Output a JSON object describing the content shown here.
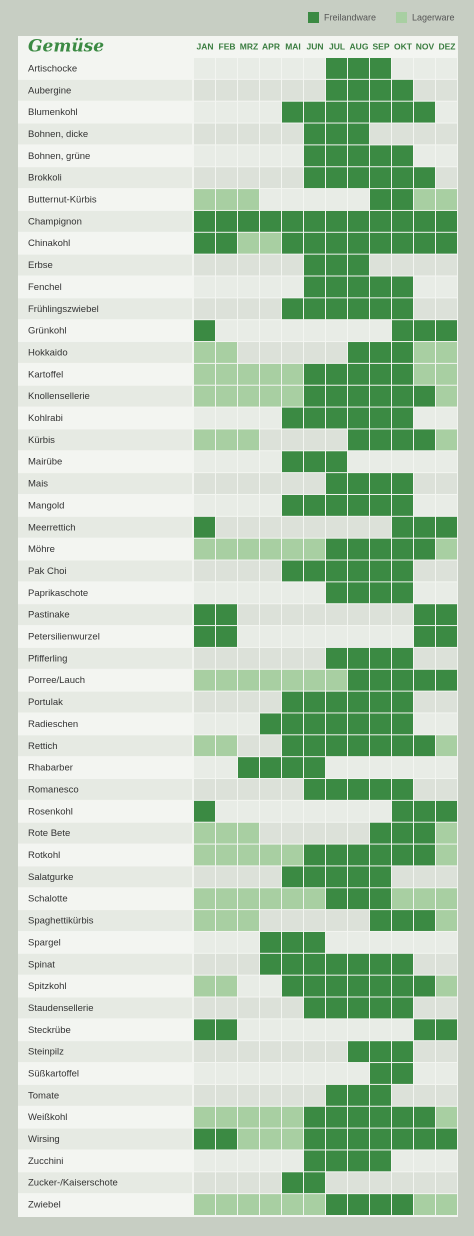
{
  "chart_data": {
    "type": "season-grid",
    "title": "Gemüse",
    "months": [
      "JAN",
      "FEB",
      "MRZ",
      "APR",
      "MAI",
      "JUN",
      "JUL",
      "AUG",
      "SEP",
      "OKT",
      "NOV",
      "DEZ"
    ],
    "legend": [
      {
        "label": "Freilandware",
        "color": "#3b8a43"
      },
      {
        "label": "Lagerware",
        "color": "#a8cfa2"
      }
    ],
    "rows": [
      {
        "name": "Artischocke",
        "months": [
          null,
          null,
          null,
          null,
          null,
          null,
          0,
          0,
          0,
          null,
          null,
          null
        ]
      },
      {
        "name": "Aubergine",
        "months": [
          null,
          null,
          null,
          null,
          null,
          null,
          0,
          0,
          0,
          0,
          null,
          null
        ]
      },
      {
        "name": "Blumenkohl",
        "months": [
          null,
          null,
          null,
          null,
          0,
          0,
          0,
          0,
          0,
          0,
          0,
          null
        ]
      },
      {
        "name": "Bohnen, dicke",
        "months": [
          null,
          null,
          null,
          null,
          null,
          0,
          0,
          0,
          null,
          null,
          null,
          null
        ]
      },
      {
        "name": "Bohnen, grüne",
        "months": [
          null,
          null,
          null,
          null,
          null,
          0,
          0,
          0,
          0,
          0,
          null,
          null
        ]
      },
      {
        "name": "Brokkoli",
        "months": [
          null,
          null,
          null,
          null,
          null,
          0,
          0,
          0,
          0,
          0,
          0,
          null
        ]
      },
      {
        "name": "Butternut-Kürbis",
        "months": [
          1,
          1,
          1,
          null,
          null,
          null,
          null,
          null,
          0,
          0,
          1,
          1
        ]
      },
      {
        "name": "Champignon",
        "months": [
          0,
          0,
          0,
          0,
          0,
          0,
          0,
          0,
          0,
          0,
          0,
          0
        ]
      },
      {
        "name": "Chinakohl",
        "months": [
          0,
          0,
          1,
          1,
          0,
          0,
          0,
          0,
          0,
          0,
          0,
          0
        ]
      },
      {
        "name": "Erbse",
        "months": [
          null,
          null,
          null,
          null,
          null,
          0,
          0,
          0,
          null,
          null,
          null,
          null
        ]
      },
      {
        "name": "Fenchel",
        "months": [
          null,
          null,
          null,
          null,
          null,
          0,
          0,
          0,
          0,
          0,
          null,
          null
        ]
      },
      {
        "name": "Frühlingszwiebel",
        "months": [
          null,
          null,
          null,
          null,
          0,
          0,
          0,
          0,
          0,
          0,
          null,
          null
        ]
      },
      {
        "name": "Grünkohl",
        "months": [
          0,
          null,
          null,
          null,
          null,
          null,
          null,
          null,
          null,
          0,
          0,
          0
        ]
      },
      {
        "name": "Hokkaido",
        "months": [
          1,
          1,
          null,
          null,
          null,
          null,
          null,
          0,
          0,
          0,
          1,
          1
        ]
      },
      {
        "name": "Kartoffel",
        "months": [
          1,
          1,
          1,
          1,
          1,
          0,
          0,
          0,
          0,
          0,
          1,
          1
        ]
      },
      {
        "name": "Knollensellerie",
        "months": [
          1,
          1,
          1,
          1,
          1,
          0,
          0,
          0,
          0,
          0,
          0,
          1
        ]
      },
      {
        "name": "Kohlrabi",
        "months": [
          null,
          null,
          null,
          null,
          0,
          0,
          0,
          0,
          0,
          0,
          null,
          null
        ]
      },
      {
        "name": "Kürbis",
        "months": [
          1,
          1,
          1,
          null,
          null,
          null,
          null,
          0,
          0,
          0,
          0,
          1
        ]
      },
      {
        "name": "Mairübe",
        "months": [
          null,
          null,
          null,
          null,
          0,
          0,
          0,
          null,
          null,
          null,
          null,
          null
        ]
      },
      {
        "name": "Mais",
        "months": [
          null,
          null,
          null,
          null,
          null,
          null,
          0,
          0,
          0,
          0,
          null,
          null
        ]
      },
      {
        "name": "Mangold",
        "months": [
          null,
          null,
          null,
          null,
          0,
          0,
          0,
          0,
          0,
          0,
          null,
          null
        ]
      },
      {
        "name": "Meerrettich",
        "months": [
          0,
          null,
          null,
          null,
          null,
          null,
          null,
          null,
          null,
          0,
          0,
          0
        ]
      },
      {
        "name": "Möhre",
        "months": [
          1,
          1,
          1,
          1,
          1,
          1,
          0,
          0,
          0,
          0,
          0,
          1
        ]
      },
      {
        "name": "Pak Choi",
        "months": [
          null,
          null,
          null,
          null,
          0,
          0,
          0,
          0,
          0,
          0,
          null,
          null
        ]
      },
      {
        "name": "Paprikaschote",
        "months": [
          null,
          null,
          null,
          null,
          null,
          null,
          0,
          0,
          0,
          0,
          null,
          null
        ]
      },
      {
        "name": "Pastinake",
        "months": [
          0,
          0,
          null,
          null,
          null,
          null,
          null,
          null,
          null,
          null,
          0,
          0
        ]
      },
      {
        "name": "Petersilienwurzel",
        "months": [
          0,
          0,
          null,
          null,
          null,
          null,
          null,
          null,
          null,
          null,
          0,
          0
        ]
      },
      {
        "name": "Pfifferling",
        "months": [
          null,
          null,
          null,
          null,
          null,
          null,
          0,
          0,
          0,
          0,
          null,
          null
        ]
      },
      {
        "name": "Porree/Lauch",
        "months": [
          1,
          1,
          1,
          1,
          1,
          1,
          1,
          0,
          0,
          0,
          0,
          0
        ]
      },
      {
        "name": "Portulak",
        "months": [
          null,
          null,
          null,
          null,
          0,
          0,
          0,
          0,
          0,
          0,
          null,
          null
        ]
      },
      {
        "name": "Radieschen",
        "months": [
          null,
          null,
          null,
          0,
          0,
          0,
          0,
          0,
          0,
          0,
          null,
          null
        ]
      },
      {
        "name": "Rettich",
        "months": [
          1,
          1,
          null,
          null,
          0,
          0,
          0,
          0,
          0,
          0,
          0,
          1
        ]
      },
      {
        "name": "Rhabarber",
        "months": [
          null,
          null,
          0,
          0,
          0,
          0,
          null,
          null,
          null,
          null,
          null,
          null
        ]
      },
      {
        "name": "Romanesco",
        "months": [
          null,
          null,
          null,
          null,
          null,
          0,
          0,
          0,
          0,
          0,
          null,
          null
        ]
      },
      {
        "name": "Rosenkohl",
        "months": [
          0,
          null,
          null,
          null,
          null,
          null,
          null,
          null,
          null,
          0,
          0,
          0
        ]
      },
      {
        "name": "Rote Bete",
        "months": [
          1,
          1,
          1,
          null,
          null,
          null,
          null,
          null,
          0,
          0,
          0,
          1
        ]
      },
      {
        "name": "Rotkohl",
        "months": [
          1,
          1,
          1,
          1,
          1,
          0,
          0,
          0,
          0,
          0,
          0,
          1
        ]
      },
      {
        "name": "Salatgurke",
        "months": [
          null,
          null,
          null,
          null,
          0,
          0,
          0,
          0,
          0,
          null,
          null,
          null
        ]
      },
      {
        "name": "Schalotte",
        "months": [
          1,
          1,
          1,
          1,
          1,
          1,
          0,
          0,
          0,
          1,
          1,
          1
        ]
      },
      {
        "name": "Spaghettikürbis",
        "months": [
          1,
          1,
          1,
          null,
          null,
          null,
          null,
          null,
          0,
          0,
          0,
          1
        ]
      },
      {
        "name": "Spargel",
        "months": [
          null,
          null,
          null,
          0,
          0,
          0,
          null,
          null,
          null,
          null,
          null,
          null
        ]
      },
      {
        "name": "Spinat",
        "months": [
          null,
          null,
          null,
          0,
          0,
          0,
          0,
          0,
          0,
          0,
          null,
          null
        ]
      },
      {
        "name": "Spitzkohl",
        "months": [
          1,
          1,
          null,
          null,
          0,
          0,
          0,
          0,
          0,
          0,
          0,
          1
        ]
      },
      {
        "name": "Staudensellerie",
        "months": [
          null,
          null,
          null,
          null,
          null,
          0,
          0,
          0,
          0,
          0,
          null,
          null
        ]
      },
      {
        "name": "Steckrübe",
        "months": [
          0,
          0,
          null,
          null,
          null,
          null,
          null,
          null,
          null,
          null,
          0,
          0
        ]
      },
      {
        "name": "Steinpilz",
        "months": [
          null,
          null,
          null,
          null,
          null,
          null,
          null,
          0,
          0,
          0,
          null,
          null
        ]
      },
      {
        "name": "Süßkartoffel",
        "months": [
          null,
          null,
          null,
          null,
          null,
          null,
          null,
          null,
          0,
          0,
          null,
          null
        ]
      },
      {
        "name": "Tomate",
        "months": [
          null,
          null,
          null,
          null,
          null,
          null,
          0,
          0,
          0,
          null,
          null,
          null
        ]
      },
      {
        "name": "Weißkohl",
        "months": [
          1,
          1,
          1,
          1,
          1,
          0,
          0,
          0,
          0,
          0,
          0,
          1
        ]
      },
      {
        "name": "Wirsing",
        "months": [
          0,
          0,
          1,
          1,
          1,
          0,
          0,
          0,
          0,
          0,
          0,
          0
        ]
      },
      {
        "name": "Zucchini",
        "months": [
          null,
          null,
          null,
          null,
          null,
          0,
          0,
          0,
          0,
          null,
          null,
          null
        ]
      },
      {
        "name": "Zucker-/Kaiserschote",
        "months": [
          null,
          null,
          null,
          null,
          0,
          0,
          null,
          null,
          null,
          null,
          null,
          null
        ]
      },
      {
        "name": "Zwiebel",
        "months": [
          1,
          1,
          1,
          1,
          1,
          1,
          0,
          0,
          0,
          0,
          1,
          1
        ]
      }
    ]
  }
}
